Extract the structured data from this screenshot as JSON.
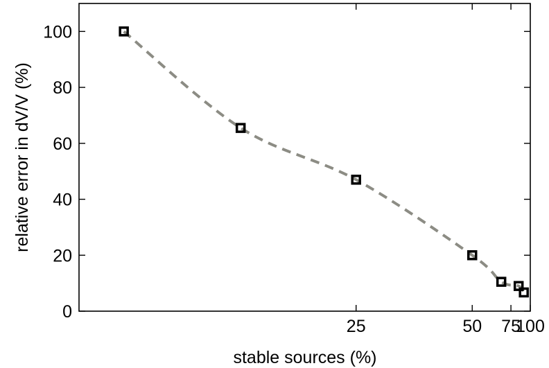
{
  "chart_data": {
    "type": "line",
    "title": "",
    "xlabel": "stable sources (%)",
    "ylabel": "relative error in dV/V (%)",
    "x_scale": "reciprocal",
    "xlim": [
      11.4,
      100
    ],
    "ylim": [
      0,
      110
    ],
    "x_ticks": [
      25,
      50,
      75,
      100
    ],
    "y_ticks": [
      0,
      20,
      40,
      60,
      80,
      100
    ],
    "grid": false,
    "legend": "none",
    "series": [
      {
        "marker": "square",
        "line_style": "dashed",
        "line_color": "#8c8c84",
        "marker_color": "#000000",
        "x": [
          12.5,
          16.7,
          25,
          50,
          66.7,
          83.3,
          90
        ],
        "y": [
          100,
          65.5,
          47,
          20,
          10.5,
          9,
          6.7
        ]
      }
    ]
  }
}
